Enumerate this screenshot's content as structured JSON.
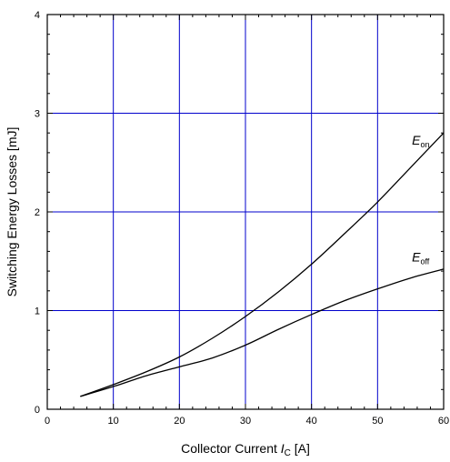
{
  "chart_data": {
    "type": "line",
    "title": "",
    "xlabel": {
      "prefix": "Collector Current ",
      "var": "I",
      "sub": "C",
      "suffix": " [A]"
    },
    "ylabel": "Switching Energy Losses [mJ]",
    "xlim": [
      0,
      60
    ],
    "ylim": [
      0,
      4
    ],
    "xticks": [
      0,
      10,
      20,
      30,
      40,
      50,
      60
    ],
    "yticks": [
      0,
      1,
      2,
      3,
      4
    ],
    "x_minor_step": 2,
    "y_minor_step": 0.2,
    "grid": true,
    "grid_x": [
      10,
      20,
      30,
      40,
      50
    ],
    "grid_y": [
      1,
      2,
      3
    ],
    "grid_color": "#0000cc",
    "line_color": "#000000",
    "series": [
      {
        "name": {
          "main": "E",
          "sub": "on"
        },
        "x": [
          5,
          10,
          15,
          20,
          25,
          30,
          35,
          40,
          45,
          50,
          55,
          60
        ],
        "y": [
          0.13,
          0.25,
          0.38,
          0.53,
          0.72,
          0.94,
          1.19,
          1.47,
          1.78,
          2.1,
          2.45,
          2.8
        ]
      },
      {
        "name": {
          "main": "E",
          "sub": "off"
        },
        "x": [
          5,
          10,
          15,
          20,
          25,
          30,
          35,
          40,
          45,
          50,
          55,
          60
        ],
        "y": [
          0.13,
          0.23,
          0.34,
          0.43,
          0.52,
          0.65,
          0.81,
          0.96,
          1.1,
          1.22,
          1.33,
          1.42
        ]
      }
    ]
  }
}
